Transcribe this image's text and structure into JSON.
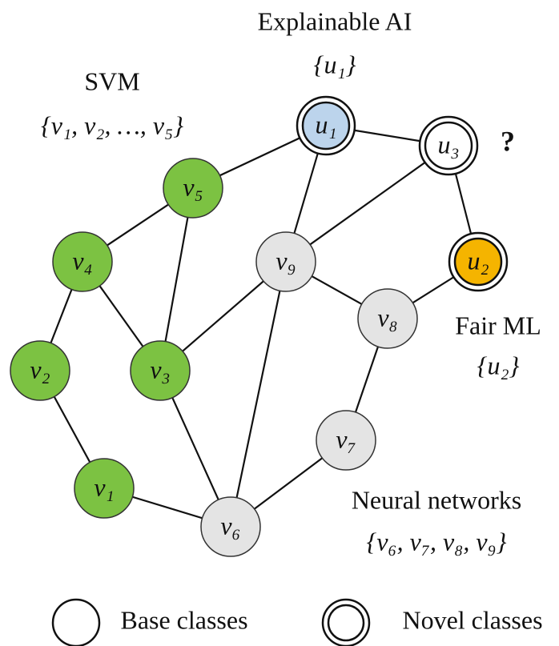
{
  "groups": [
    {
      "name": "Explainable AI",
      "set": "{u₁}"
    },
    {
      "name": "SVM",
      "set": "{v₁, v₂, …, v₅}"
    },
    {
      "name": "Fair ML",
      "set": "{u₂}"
    },
    {
      "name": "Neural networks",
      "set": "{v₆, v₇, v₈, v₉}"
    }
  ],
  "question": "?",
  "nodes": [
    {
      "label": "u₁",
      "color": "#bcd4ec",
      "novel": true
    },
    {
      "label": "u₃",
      "color": "#ffffff",
      "novel": true
    },
    {
      "label": "u₂",
      "color": "#f5b400",
      "novel": true
    },
    {
      "label": "v₅",
      "color": "#7cc242",
      "novel": false
    },
    {
      "label": "v₄",
      "color": "#7cc242",
      "novel": false
    },
    {
      "label": "v₉",
      "color": "#e4e4e4",
      "novel": false
    },
    {
      "label": "v₈",
      "color": "#e4e4e4",
      "novel": false
    },
    {
      "label": "v₂",
      "color": "#7cc242",
      "novel": false
    },
    {
      "label": "v₃",
      "color": "#7cc242",
      "novel": false
    },
    {
      "label": "v₇",
      "color": "#e4e4e4",
      "novel": false
    },
    {
      "label": "v₁",
      "color": "#7cc242",
      "novel": false
    },
    {
      "label": "v₆",
      "color": "#e4e4e4",
      "novel": false
    }
  ],
  "legend": {
    "base": "Base classes",
    "novel": "Novel classes"
  }
}
